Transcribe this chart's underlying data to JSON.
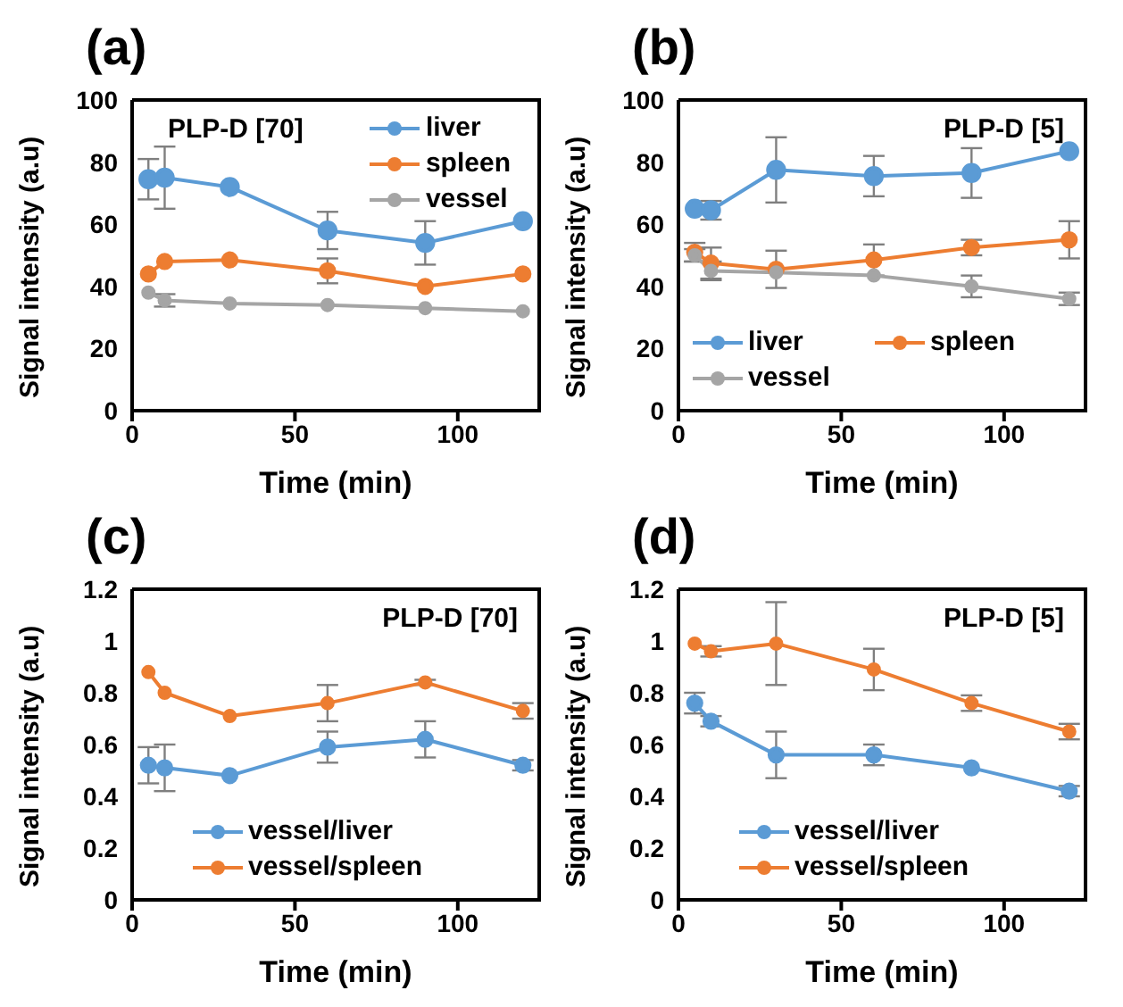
{
  "chart_data": [
    {
      "type": "line",
      "title": "(a)",
      "annotations": [
        "PLP-D [70]"
      ],
      "xlabel": "Time (min)",
      "ylabel": "Signal intensity (a.u)",
      "x": [
        5,
        10,
        30,
        60,
        90,
        120
      ],
      "xlim": [
        0,
        125
      ],
      "xticks": [
        0,
        50,
        100
      ],
      "ylim": [
        0,
        100
      ],
      "yticks": [
        0,
        20,
        40,
        60,
        80,
        100
      ],
      "legend": "top right",
      "marker": "circle",
      "series": [
        {
          "name": "liver",
          "color": "#5b9bd5",
          "values": [
            74.5,
            75,
            72,
            58,
            54,
            61
          ],
          "errors": [
            6.5,
            10,
            null,
            6,
            7,
            null
          ]
        },
        {
          "name": "spleen",
          "color": "#ed7d31",
          "values": [
            44,
            48,
            48.5,
            45,
            40,
            44
          ],
          "errors": [
            null,
            null,
            null,
            4,
            null,
            null
          ]
        },
        {
          "name": "vessel",
          "color": "#a5a5a5",
          "values": [
            38,
            35.5,
            34.5,
            34,
            33,
            32
          ],
          "errors": [
            null,
            2,
            null,
            null,
            null,
            null
          ]
        }
      ]
    },
    {
      "type": "line",
      "title": "(b)",
      "annotations": [
        "PLP-D [5]"
      ],
      "xlabel": "Time (min)",
      "ylabel": "Signal intensity (a.u)",
      "x": [
        5,
        10,
        30,
        60,
        90,
        120
      ],
      "xlim": [
        0,
        125
      ],
      "xticks": [
        0,
        50,
        100
      ],
      "ylim": [
        0,
        100
      ],
      "yticks": [
        0,
        20,
        40,
        60,
        80,
        100
      ],
      "legend": "bottom left",
      "marker": "circle",
      "series": [
        {
          "name": "liver",
          "color": "#5b9bd5",
          "values": [
            65,
            64.5,
            77.5,
            75.5,
            76.5,
            83.5
          ],
          "errors": [
            null,
            3,
            10.5,
            6.5,
            8,
            null
          ]
        },
        {
          "name": "spleen",
          "color": "#ed7d31",
          "values": [
            51,
            47.5,
            45.5,
            48.5,
            52.5,
            55
          ],
          "errors": [
            3,
            5,
            6,
            5,
            2.5,
            6
          ]
        },
        {
          "name": "vessel",
          "color": "#a5a5a5",
          "values": [
            50,
            45,
            44.5,
            43.5,
            40,
            36
          ],
          "errors": [
            2,
            3,
            null,
            null,
            3.5,
            2
          ]
        }
      ]
    },
    {
      "type": "line",
      "title": "(c)",
      "annotations": [
        "PLP-D [70]"
      ],
      "xlabel": "Time (min)",
      "ylabel": "Signal intensity (a.u)",
      "x": [
        5,
        10,
        30,
        60,
        90,
        120
      ],
      "xlim": [
        0,
        125
      ],
      "xticks": [
        0,
        50,
        100
      ],
      "ylim": [
        0,
        1.2
      ],
      "yticks": [
        0,
        0.2,
        0.4,
        0.6,
        0.8,
        1,
        1.2
      ],
      "legend": "bottom",
      "marker": "circle",
      "series": [
        {
          "name": "vessel/liver",
          "color": "#5b9bd5",
          "values": [
            0.52,
            0.51,
            0.48,
            0.59,
            0.62,
            0.52
          ],
          "errors": [
            0.07,
            0.09,
            null,
            0.06,
            0.07,
            0.02
          ]
        },
        {
          "name": "vessel/spleen",
          "color": "#ed7d31",
          "values": [
            0.88,
            0.8,
            0.71,
            0.76,
            0.84,
            0.73
          ],
          "errors": [
            null,
            null,
            null,
            0.07,
            0.01,
            0.03
          ]
        }
      ]
    },
    {
      "type": "line",
      "title": "(d)",
      "annotations": [
        "PLP-D [5]"
      ],
      "xlabel": "Time (min)",
      "ylabel": "Signal intensity (a.u)",
      "x": [
        5,
        10,
        30,
        60,
        90,
        120
      ],
      "xlim": [
        0,
        125
      ],
      "xticks": [
        0,
        50,
        100
      ],
      "ylim": [
        0,
        1.2
      ],
      "yticks": [
        0,
        0.2,
        0.4,
        0.6,
        0.8,
        1,
        1.2
      ],
      "legend": "bottom",
      "marker": "circle",
      "series": [
        {
          "name": "vessel/liver",
          "color": "#5b9bd5",
          "values": [
            0.76,
            0.69,
            0.56,
            0.56,
            0.51,
            0.42
          ],
          "errors": [
            0.04,
            0.02,
            0.09,
            0.04,
            null,
            0.02
          ]
        },
        {
          "name": "vessel/spleen",
          "color": "#ed7d31",
          "values": [
            0.99,
            0.96,
            0.99,
            0.89,
            0.76,
            0.65
          ],
          "errors": [
            null,
            0.02,
            0.16,
            0.08,
            0.03,
            0.03
          ]
        }
      ]
    }
  ]
}
